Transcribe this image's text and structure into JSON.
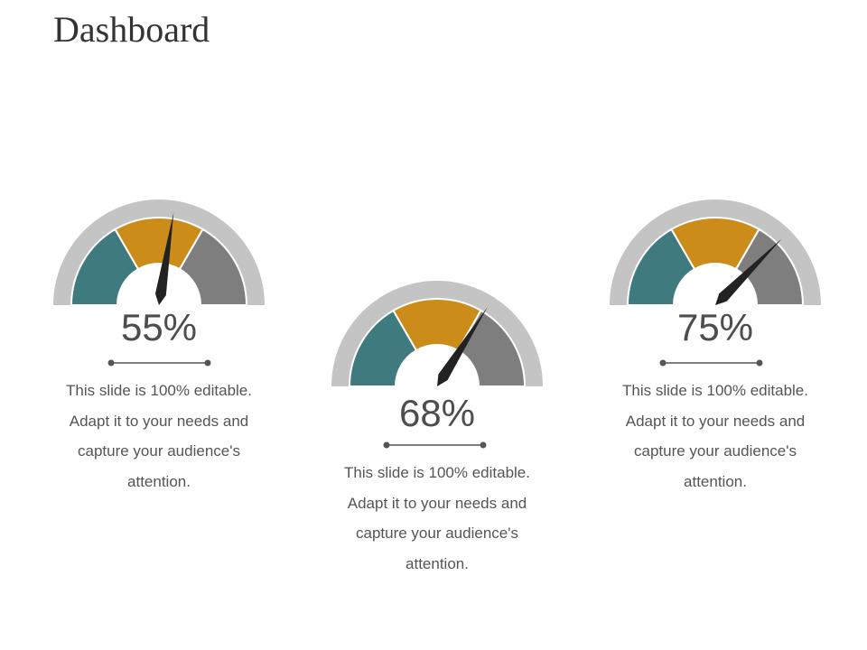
{
  "page": {
    "title": "Dashboard"
  },
  "colors": {
    "outer_ring": "#c4c4c4",
    "segment_low": "#3f7a7e",
    "segment_mid": "#cb8c19",
    "segment_high": "#7e7e7e",
    "needle": "#222222",
    "divider": "#555555"
  },
  "gauges": [
    {
      "value": 55,
      "label": "55%",
      "description": "This slide is 100% editable. Adapt it to your needs and capture your audience's attention."
    },
    {
      "value": 68,
      "label": "68%",
      "description": "This slide is 100% editable. Adapt it to your needs and capture your audience's attention."
    },
    {
      "value": 75,
      "label": "75%",
      "description": "This slide is 100% editable. Adapt it to your needs and capture your audience's attention."
    }
  ]
}
